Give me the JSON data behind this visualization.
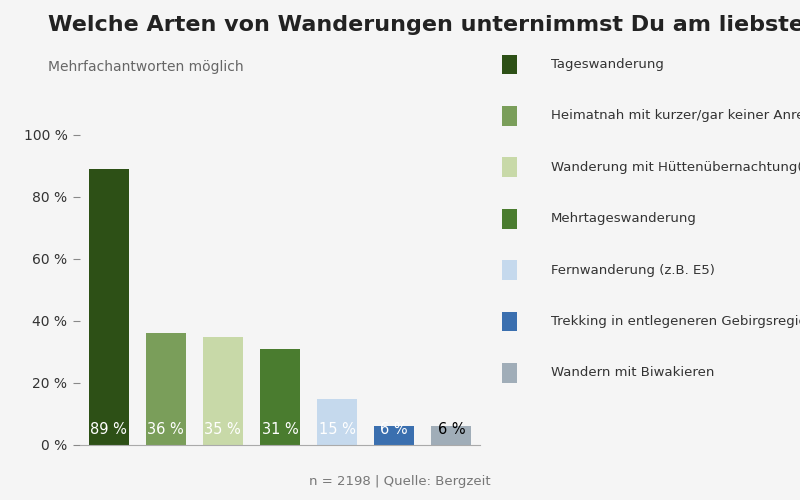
{
  "title": "Welche Arten von Wanderungen unternimmst Du am liebsten?",
  "subtitle": "Mehrfachantworten möglich",
  "categories": [
    "Tageswanderung",
    "Heimatnah mit kurzer/gar keiner Anreise",
    "Wanderung mit Hüttenübernachtung(en)",
    "Mehrtageswanderung",
    "Fernwanderung (z.B. E5)",
    "Trekking in entlegeneren Gebirgsregionen der Welt",
    "Wandern mit Biwakieren"
  ],
  "values": [
    89,
    36,
    35,
    31,
    15,
    6,
    6
  ],
  "bar_colors": [
    "#2d5016",
    "#7a9e5a",
    "#c8d9a8",
    "#4a7c2f",
    "#c5d9ed",
    "#3a6faf",
    "#a0adb8"
  ],
  "label_colors": [
    "white",
    "white",
    "white",
    "white",
    "white",
    "white",
    "black"
  ],
  "ylim": [
    0,
    100
  ],
  "yticks": [
    0,
    20,
    40,
    60,
    80,
    100
  ],
  "footer": "n = 2198 | Quelle: Bergzeit",
  "background_color": "#f5f5f5",
  "title_fontsize": 16,
  "subtitle_fontsize": 10,
  "bar_label_fontsize": 10.5
}
